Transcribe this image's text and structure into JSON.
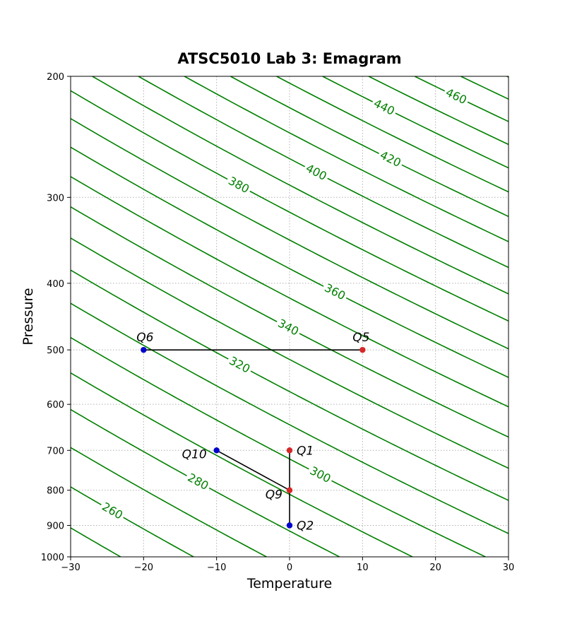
{
  "chart_data": {
    "type": "line",
    "title": "ATSC5010 Lab 3: Emagram",
    "xlabel": "Temperature",
    "ylabel": "Pressure",
    "xlim": [
      -30,
      30
    ],
    "ylim": [
      1000,
      200
    ],
    "yscale": "log",
    "grid": true,
    "x_ticks": [
      -30,
      -20,
      -10,
      0,
      10,
      20,
      30
    ],
    "y_ticks": [
      1000,
      900,
      800,
      700,
      600,
      500,
      400,
      300,
      200
    ],
    "isentropes": {
      "color": "#008000",
      "theta_values": [
        240,
        250,
        260,
        270,
        280,
        290,
        300,
        310,
        320,
        330,
        340,
        350,
        360,
        370,
        380,
        390,
        400,
        410,
        420,
        430,
        440,
        450,
        460,
        470,
        480
      ],
      "labeled": [
        260,
        280,
        300,
        320,
        340,
        360,
        380,
        400,
        420,
        440,
        460
      ]
    },
    "points": [
      {
        "label": "Q1",
        "x": 0,
        "y": 700,
        "color": "#d62728"
      },
      {
        "label": "Q2",
        "x": 0,
        "y": 900,
        "color": "#0000cc"
      },
      {
        "label": "Q5",
        "x": 10,
        "y": 500,
        "color": "#d62728"
      },
      {
        "label": "Q6",
        "x": -20,
        "y": 500,
        "color": "#0000cc"
      },
      {
        "label": "Q9",
        "x": 0,
        "y": 800,
        "color": "#d62728"
      },
      {
        "label": "Q10",
        "x": -10,
        "y": 700,
        "color": "#0000cc"
      }
    ],
    "segments": [
      {
        "from": "Q1",
        "to": "Q2"
      },
      {
        "from": "Q5",
        "to": "Q6"
      },
      {
        "from": "Q9",
        "to": "Q10"
      }
    ]
  }
}
